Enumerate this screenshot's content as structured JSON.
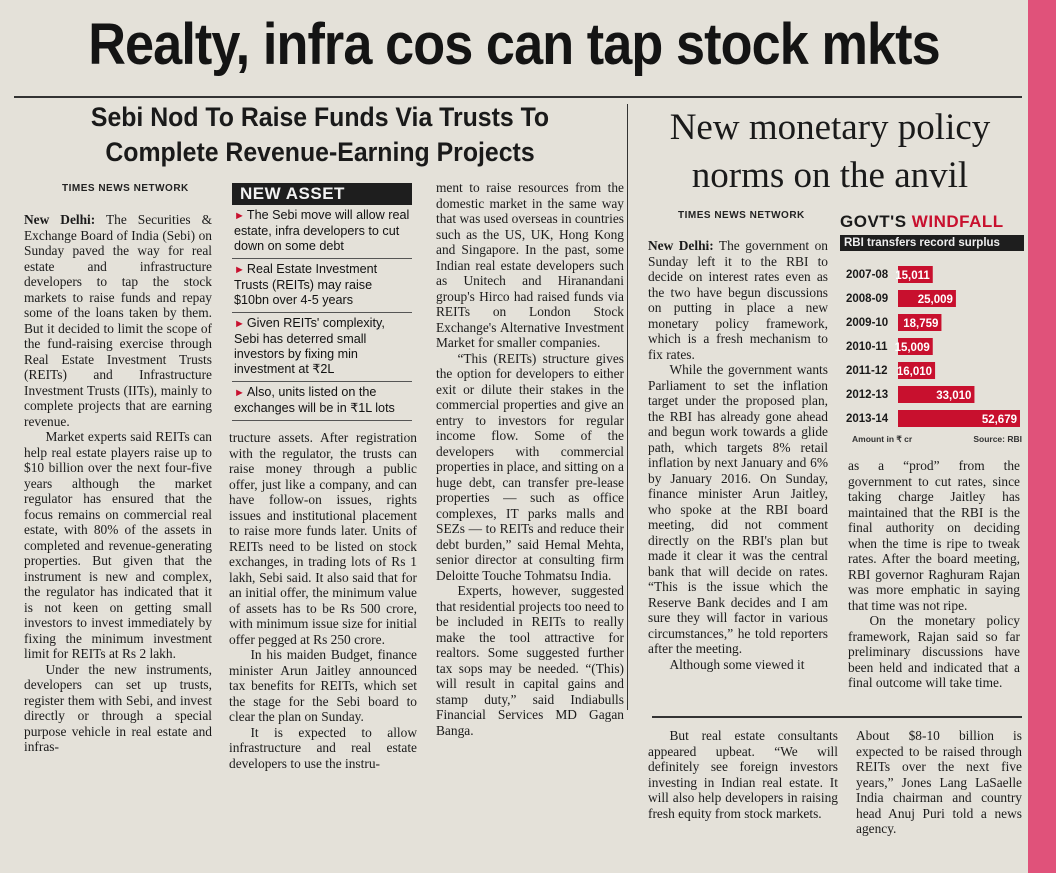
{
  "headline": "Realty, infra cos can tap stock mkts",
  "sebi_story": {
    "deck": [
      "Sebi Nod To Raise Funds Via Trusts To",
      "Complete Revenue-Earning Projects"
    ],
    "byline": "TIMES NEWS NETWORK",
    "dateline": "New Delhi:",
    "col1": [
      "The Securities & Exchange Board of India (Sebi) on Sunday paved the way for real estate and infrastructure developers to tap the stock markets to raise funds and repay some of the loans taken by them. But it decided to limit the scope of the fund-raising exercise through Real Estate Investment Trusts (REITs) and Infrastructure Investment Trusts (IITs), mainly to complete projects that are earning revenue.",
      "Market experts said REITs can help real estate players raise up to $10 billion over the next four-five years although the market regulator has ensured that the focus remains on commercial real estate, with 80% of the assets in completed and revenue-generating properties. But given that the instrument is new and complex, the regulator has indicated that it is not keen on getting small investors to invest immediately by fixing the minimum investment limit for REITs at Rs 2 lakh.",
      "Under the new instruments, developers can set up trusts, register them with Sebi, and invest directly or through a special purpose vehicle in real estate and infras-"
    ],
    "col2": [
      "tructure assets. After registration with the regulator, the trusts can raise money through a public offer, just like a company, and can have follow-on issues, rights issues and institutional placement to raise more funds later. Units of REITs need to be listed on stock exchanges, in trading lots of Rs 1 lakh, Sebi said. It also said that for an initial offer, the minimum value of assets has to be Rs 500 crore, with minimum issue size for initial offer pegged at Rs 250 crore.",
      "In his maiden Budget, finance minister Arun Jaitley announced tax benefits for REITs, which set the stage for the Sebi board to clear the plan on Sunday.",
      "It is expected to allow infrastructure and real estate developers to use the instru-"
    ],
    "col3": [
      "ment to raise resources from the domestic market in the same way that was used overseas in countries such as the US, UK, Hong Kong and Singapore. In the past, some Indian real estate developers such as Unitech and Hiranandani group's Hirco had raised funds via REITs on London Stock Exchange's Alternative Investment Market for smaller companies.",
      "“This (REITs) structure gives the option for developers to either exit or dilute their stakes in the commercial properties and give an entry to investors for regular income flow. Some of the developers with commercial properties in place, and sitting on a huge debt, can transfer pre-lease properties — such as office complexes, IT parks malls and SEZs — to REITs and reduce their debt burden,” said Hemal Mehta, senior director at consulting firm Deloitte Touche Tohmatsu India.",
      "Experts, however, suggested that residential projects too need to be included in REITs to really make the tool attractive for realtors. Some suggested further tax sops may be needed. “(This) will result in capital gains and stamp duty,” said Indiabulls Financial Services MD Gagan Banga."
    ],
    "col4_bottom": [
      "But real estate consultants appeared upbeat. “We will definitely see foreign investors investing in Indian real estate. It will also help developers in raising fresh equity from stock markets."
    ],
    "col5_bottom": [
      "About $8-10 billion is expected to be raised through REITs over the next five years,” Jones Lang LaSaelle India chairman and country head Anuj Puri told a news agency."
    ]
  },
  "new_asset_box": {
    "title": "NEW ASSET",
    "items": [
      "The Sebi move will allow real estate, infra developers to cut down on some debt",
      "Real Estate Investment Trusts (REITs) may raise $10bn over 4-5 years",
      "Given REITs' complexity, Sebi has deterred small investors by fixing min investment at ₹2L",
      "Also, units listed on the exchanges will be in ₹1L lots"
    ]
  },
  "monetary_story": {
    "headline": [
      "New monetary policy",
      "norms on the anvil"
    ],
    "byline": "TIMES NEWS NETWORK",
    "dateline": "New Delhi:",
    "col1": [
      "The government on Sunday left it to the RBI to decide on interest rates even as the two have begun discussions on putting in place a new monetary policy framework, which is a fresh mechanism to fix rates.",
      "While the government wants Parliament to set the inflation target under the proposed plan, the RBI has already gone ahead and begun work towards a glide path, which targets 8% retail inflation by next January and 6% by January 2016. On Sunday, finance minister Arun Jaitley, who spoke at the RBI board meeting, did not comment directly on the RBI's plan but made it clear it was the central bank that will decide on rates. “This is the issue which the Reserve Bank decides and I am sure they will factor in various circumstances,” he told reporters after the meeting.",
      "Although some viewed it"
    ],
    "col2": [
      "as a “prod” from the government to cut rates, since taking charge Jaitley has maintained that the RBI is the final authority on deciding when the time is ripe to tweak rates. After the board meeting, RBI governor Raghuram Rajan was more emphatic in saying that time was not ripe.",
      "On the monetary policy framework, Rajan said so far preliminary discussions have been held and indicated that a final outcome will take time."
    ]
  },
  "govt_windfall": {
    "title_black": "GOVT'S",
    "title_red": "WINDFALL",
    "subtitle": "RBI transfers record surplus",
    "footer_left": "Amount in ₹ cr",
    "footer_right": "Source: RBI",
    "bar_color": "#c8102e"
  },
  "chart_data": {
    "type": "bar",
    "orientation": "horizontal",
    "title": "GOVT'S WINDFALL",
    "subtitle": "RBI transfers record surplus",
    "categories": [
      "2007-08",
      "2008-09",
      "2009-10",
      "2010-11",
      "2011-12",
      "2012-13",
      "2013-14"
    ],
    "values": [
      15011,
      25009,
      18759,
      15009,
      16010,
      33010,
      52679
    ],
    "value_labels": [
      "15,011",
      "25,009",
      "18,759",
      "15,009",
      "16,010",
      "33,010",
      "52,679"
    ],
    "unit": "Amount in ₹ cr",
    "source": "Source: RBI",
    "grid": false,
    "legend": "none"
  }
}
